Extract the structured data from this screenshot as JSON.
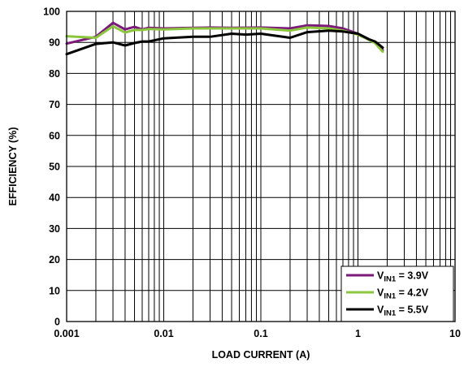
{
  "chart_data": {
    "type": "line",
    "title": "",
    "xlabel": "LOAD CURRENT (A)",
    "ylabel": "EFFICIENCY (%)",
    "xscale": "log",
    "xlim": [
      0.001,
      10
    ],
    "ylim": [
      0,
      100
    ],
    "xticks": [
      0.001,
      0.01,
      0.1,
      1,
      10
    ],
    "xtick_labels": [
      "0.001",
      "0.01",
      "0.1",
      "1",
      "10"
    ],
    "yticks": [
      0,
      10,
      20,
      30,
      40,
      50,
      60,
      70,
      80,
      90,
      100
    ],
    "ytick_labels": [
      "0",
      "10",
      "20",
      "30",
      "40",
      "50",
      "60",
      "70",
      "80",
      "90",
      "100"
    ],
    "grid": true,
    "legend_position": "bottom-right",
    "series": [
      {
        "name_main": "V",
        "name_sub": "IN1",
        "name_rest": " = 3.9V",
        "color": "#7b1a7b",
        "points": [
          [
            0.001,
            89.6
          ],
          [
            0.002,
            91.8
          ],
          [
            0.003,
            96.3
          ],
          [
            0.004,
            94.2
          ],
          [
            0.005,
            95.0
          ],
          [
            0.006,
            94.2
          ],
          [
            0.007,
            94.7
          ],
          [
            0.01,
            94.5
          ],
          [
            0.02,
            94.7
          ],
          [
            0.03,
            94.8
          ],
          [
            0.05,
            94.7
          ],
          [
            0.1,
            94.8
          ],
          [
            0.2,
            94.5
          ],
          [
            0.3,
            95.5
          ],
          [
            0.5,
            95.3
          ],
          [
            0.7,
            94.5
          ],
          [
            1,
            92.8
          ],
          [
            1.3,
            90.8
          ],
          [
            1.5,
            90.0
          ],
          [
            1.8,
            87.5
          ]
        ]
      },
      {
        "name_main": "V",
        "name_sub": "IN1",
        "name_rest": " = 4.2V",
        "color": "#8cc63f",
        "points": [
          [
            0.001,
            92.0
          ],
          [
            0.002,
            91.5
          ],
          [
            0.003,
            95.2
          ],
          [
            0.004,
            93.2
          ],
          [
            0.005,
            94.0
          ],
          [
            0.006,
            94.0
          ],
          [
            0.007,
            94.3
          ],
          [
            0.01,
            94.2
          ],
          [
            0.02,
            94.5
          ],
          [
            0.03,
            94.5
          ],
          [
            0.05,
            94.5
          ],
          [
            0.1,
            94.5
          ],
          [
            0.2,
            93.8
          ],
          [
            0.3,
            94.8
          ],
          [
            0.5,
            94.5
          ],
          [
            0.7,
            93.8
          ],
          [
            1,
            92.5
          ],
          [
            1.3,
            90.8
          ],
          [
            1.5,
            89.8
          ],
          [
            1.8,
            87.0
          ]
        ]
      },
      {
        "name_main": "V",
        "name_sub": "IN1",
        "name_rest": " = 5.5V",
        "color": "#000000",
        "points": [
          [
            0.001,
            86.2
          ],
          [
            0.002,
            89.5
          ],
          [
            0.003,
            90.0
          ],
          [
            0.004,
            89.0
          ],
          [
            0.005,
            89.8
          ],
          [
            0.006,
            90.3
          ],
          [
            0.007,
            90.3
          ],
          [
            0.01,
            91.3
          ],
          [
            0.02,
            91.8
          ],
          [
            0.03,
            91.8
          ],
          [
            0.05,
            92.8
          ],
          [
            0.07,
            92.5
          ],
          [
            0.1,
            92.8
          ],
          [
            0.2,
            91.5
          ],
          [
            0.3,
            93.3
          ],
          [
            0.5,
            93.8
          ],
          [
            0.7,
            93.5
          ],
          [
            1,
            92.8
          ],
          [
            1.3,
            91.0
          ],
          [
            1.5,
            90.3
          ],
          [
            1.8,
            88.3
          ]
        ]
      }
    ]
  }
}
